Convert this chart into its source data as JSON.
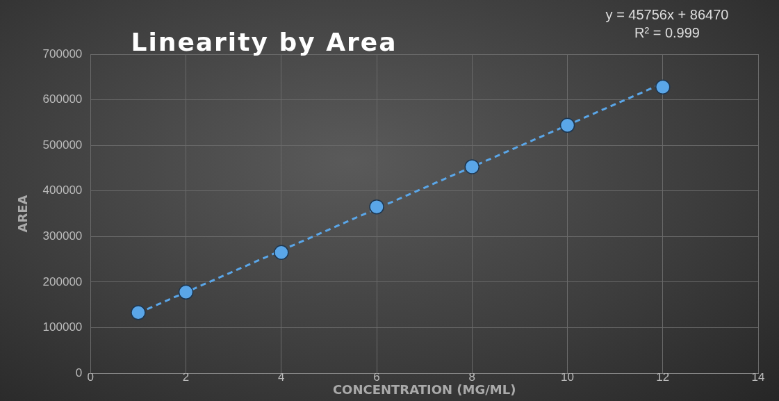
{
  "chart_data": {
    "type": "scatter",
    "title": "Linearity by Area",
    "xlabel": "CONCENTRATION (MG/ML)",
    "ylabel": "AREA",
    "annotations": [
      "y = 45756x + 86470",
      "R² = 0.999"
    ],
    "series": [
      {
        "color": "#5aa6e8",
        "x": [
          1,
          2,
          4,
          6,
          8,
          10,
          12
        ],
        "values": [
          133000,
          178000,
          265000,
          365000,
          453000,
          544000,
          628000
        ],
        "marker": "circle"
      },
      {
        "type": "line",
        "color": "#5aa6e8",
        "x": [
          1,
          12
        ],
        "values": [
          132000,
          636000
        ],
        "line_style": "dashed",
        "marker": "none"
      }
    ],
    "xlim": [
      0,
      14
    ],
    "xticks": [
      0,
      2,
      4,
      6,
      8,
      10,
      12,
      14
    ],
    "ylim": [
      0,
      700000
    ],
    "yticks": [
      0,
      100000,
      200000,
      300000,
      400000,
      500000,
      600000,
      700000
    ],
    "grid": true,
    "legend": false
  }
}
